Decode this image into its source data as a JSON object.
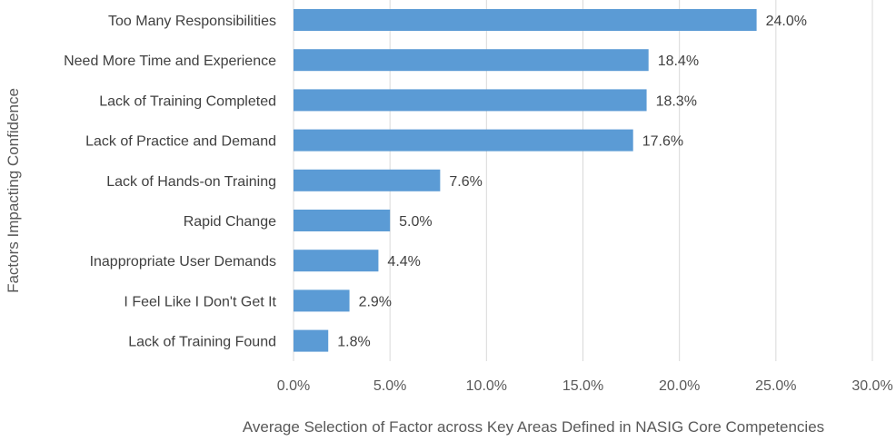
{
  "chart_data": {
    "type": "bar",
    "orientation": "horizontal",
    "categories": [
      "Too Many Responsibilities",
      "Need More Time and Experience",
      "Lack of Training Completed",
      "Lack of Practice and Demand",
      "Lack of Hands-on Training",
      "Rapid Change",
      "Inappropriate User Demands",
      "I Feel Like I Don't Get It",
      "Lack of Training Found"
    ],
    "values": [
      24.0,
      18.4,
      18.3,
      17.6,
      7.6,
      5.0,
      4.4,
      2.9,
      1.8
    ],
    "data_labels": [
      "24.0%",
      "18.4%",
      "18.3%",
      "17.6%",
      "7.6%",
      "5.0%",
      "4.4%",
      "2.9%",
      "1.8%"
    ],
    "xlabel": "Average Selection of Factor across Key Areas Defined in NASIG Core Competencies",
    "ylabel": "Factors Impacting Confidence",
    "xlim": [
      0,
      30
    ],
    "xticks": [
      "0.0%",
      "5.0%",
      "10.0%",
      "15.0%",
      "20.0%",
      "25.0%",
      "30.0%"
    ],
    "grid": true,
    "bar_color": "#5B9BD5",
    "grid_color": "#D9D9D9"
  }
}
